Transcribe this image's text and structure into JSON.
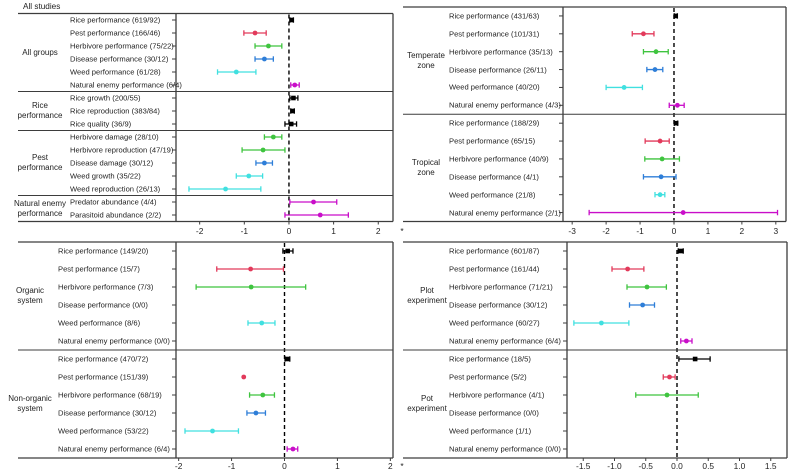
{
  "figure_background": "#ffffff",
  "chart_data": {
    "type": "scatter",
    "subtype": "forest-plot-meta-analysis",
    "legend_position": "none",
    "grid": false,
    "series_colors": {
      "rice": "#000000",
      "pest": "#e23a5b",
      "herbivore": "#3fc43f",
      "disease": "#2e7ed8",
      "weed": "#40e0e0",
      "natural_enemy": "#c90ec9"
    },
    "panels": [
      {
        "id": "all-studies",
        "header": "All studies",
        "xlim": [
          -2.53,
          2.33
        ],
        "x_ticks": [
          -2,
          -1,
          0,
          1,
          2
        ],
        "x_tick_labels": [
          "-2",
          "-1",
          "0",
          "1",
          "2"
        ],
        "x_suffix": "*",
        "groups": [
          {
            "label": "All groups",
            "rows": [
              {
                "label": "Rice performance (619/92)",
                "series": "rice",
                "marker": "square",
                "value": 0.06,
                "lo": 0.02,
                "hi": 0.1
              },
              {
                "label": "Pest performance (166/46)",
                "series": "pest",
                "marker": "circle",
                "value": -0.76,
                "lo": -1.01,
                "hi": -0.51
              },
              {
                "label": "Herbivore performance (75/22)",
                "series": "herbivore",
                "marker": "circle",
                "value": -0.46,
                "lo": -0.76,
                "hi": -0.16
              },
              {
                "label": "Disease performance (30/12)",
                "series": "disease",
                "marker": "circle",
                "value": -0.55,
                "lo": -0.76,
                "hi": -0.35
              },
              {
                "label": "Weed performance (61/28)",
                "series": "weed",
                "marker": "circle",
                "value": -1.18,
                "lo": -1.6,
                "hi": -0.74
              },
              {
                "label": "Natural enemy performance (6/4)",
                "series": "natural_enemy",
                "marker": "circle",
                "value": 0.13,
                "lo": 0.04,
                "hi": 0.23
              }
            ]
          },
          {
            "label": "Rice\nperformance",
            "rows": [
              {
                "label": "Rice growth (200/55)",
                "series": "rice",
                "marker": "square",
                "value": 0.1,
                "lo": 0.02,
                "hi": 0.2
              },
              {
                "label": "Rice reproduction (383/84)",
                "series": "rice",
                "marker": "square",
                "value": 0.08,
                "lo": 0.04,
                "hi": 0.12
              },
              {
                "label": "Rice quality (36/9)",
                "series": "rice",
                "marker": "square",
                "value": 0.05,
                "lo": -0.09,
                "hi": 0.17
              }
            ]
          },
          {
            "label": "Pest\nperformance",
            "rows": [
              {
                "label": "Herbivore damage (28/10)",
                "series": "herbivore",
                "marker": "circle",
                "value": -0.35,
                "lo": -0.55,
                "hi": -0.16
              },
              {
                "label": "Herbivore reproduction (47/19)",
                "series": "herbivore",
                "marker": "circle",
                "value": -0.58,
                "lo": -1.05,
                "hi": -0.09
              },
              {
                "label": "Disease damage (30/12)",
                "series": "disease",
                "marker": "circle",
                "value": -0.55,
                "lo": -0.74,
                "hi": -0.37
              },
              {
                "label": "Weed growth (35/22)",
                "series": "weed",
                "marker": "circle",
                "value": -0.9,
                "lo": -1.18,
                "hi": -0.59
              },
              {
                "label": "Weed reproduction (26/13)",
                "series": "weed",
                "marker": "circle",
                "value": -1.42,
                "lo": -2.24,
                "hi": -0.63
              }
            ]
          },
          {
            "label": "Natural enemy\nperformance",
            "rows": [
              {
                "label": "Predator abundance (4/4)",
                "series": "natural_enemy",
                "marker": "circle",
                "value": 0.55,
                "lo": 0.02,
                "hi": 1.07
              },
              {
                "label": "Parasitoid abundance (2/2)",
                "series": "natural_enemy",
                "marker": "circle",
                "value": 0.7,
                "lo": -0.09,
                "hi": 1.33
              }
            ]
          }
        ]
      },
      {
        "id": "climate-zone",
        "header": "",
        "xlim": [
          -3.27,
          3.3
        ],
        "x_ticks": [
          -3,
          -2,
          -1,
          0,
          1,
          2,
          3
        ],
        "x_tick_labels": [
          "-3",
          "-2",
          "-1",
          "0",
          "1",
          "2",
          "3"
        ],
        "x_suffix": "",
        "groups": [
          {
            "label": "Temperate\nzone",
            "rows": [
              {
                "label": "Rice performance (431/63)",
                "series": "rice",
                "marker": "square",
                "value": 0.05,
                "lo": 0.01,
                "hi": 0.1
              },
              {
                "label": "Pest performance (101/31)",
                "series": "pest",
                "marker": "circle",
                "value": -0.9,
                "lo": -1.23,
                "hi": -0.59
              },
              {
                "label": "Herbivore performance (35/13)",
                "series": "herbivore",
                "marker": "circle",
                "value": -0.53,
                "lo": -0.9,
                "hi": -0.17
              },
              {
                "label": "Disease performance (26/11)",
                "series": "disease",
                "marker": "circle",
                "value": -0.56,
                "lo": -0.8,
                "hi": -0.33
              },
              {
                "label": "Weed performance (40/20)",
                "series": "weed",
                "marker": "circle",
                "value": -1.47,
                "lo": -2.0,
                "hi": -0.93
              },
              {
                "label": "Natural enemy performance (4/3)",
                "series": "natural_enemy",
                "marker": "circle",
                "value": 0.1,
                "lo": -0.14,
                "hi": 0.3
              }
            ]
          },
          {
            "label": "Tropical\nzone",
            "rows": [
              {
                "label": "Rice performance (188/29)",
                "series": "rice",
                "marker": "square",
                "value": 0.06,
                "lo": 0.01,
                "hi": 0.11
              },
              {
                "label": "Pest performance (65/15)",
                "series": "pest",
                "marker": "circle",
                "value": -0.41,
                "lo": -0.85,
                "hi": -0.14
              },
              {
                "label": "Herbivore performance (40/9)",
                "series": "herbivore",
                "marker": "circle",
                "value": -0.35,
                "lo": -0.86,
                "hi": 0.16
              },
              {
                "label": "Disease performance (4/1)",
                "series": "disease",
                "marker": "circle",
                "value": -0.38,
                "lo": -0.9,
                "hi": 0.06
              },
              {
                "label": "Weed performance (21/8)",
                "series": "weed",
                "marker": "circle",
                "value": -0.41,
                "lo": -0.56,
                "hi": -0.27
              },
              {
                "label": "Natural enemy performance (2/1)",
                "series": "natural_enemy",
                "marker": "circle",
                "value": 0.27,
                "lo": -2.5,
                "hi": 3.05
              }
            ]
          }
        ]
      },
      {
        "id": "farming-system",
        "header": "",
        "xlim": [
          -2.05,
          2.05
        ],
        "x_ticks": [
          -2,
          -1,
          0,
          1,
          2
        ],
        "x_tick_labels": [
          "-2",
          "-1",
          "0",
          "1",
          "2"
        ],
        "x_suffix": "*",
        "groups": [
          {
            "label": "Organic\nsystem",
            "rows": [
              {
                "label": "Rice performance (149/20)",
                "series": "rice",
                "marker": "square",
                "value": 0.06,
                "lo": -0.03,
                "hi": 0.16
              },
              {
                "label": "Pest performance (15/7)",
                "series": "pest",
                "marker": "circle",
                "value": -0.64,
                "lo": -1.28,
                "hi": -0.02
              },
              {
                "label": "Herbivore performance (7/3)",
                "series": "herbivore",
                "marker": "circle",
                "value": -0.63,
                "lo": -1.67,
                "hi": 0.4
              },
              {
                "label": "Disease performance (0/0)",
                "series": "disease",
                "marker": "circle",
                "value": null,
                "lo": null,
                "hi": null
              },
              {
                "label": "Weed performance (8/6)",
                "series": "weed",
                "marker": "circle",
                "value": -0.43,
                "lo": -0.69,
                "hi": -0.18
              },
              {
                "label": "Natural enemy performance (0/0)",
                "series": "natural_enemy",
                "marker": "circle",
                "value": null,
                "lo": null,
                "hi": null
              }
            ]
          },
          {
            "label": "Non-organic\nsystem",
            "rows": [
              {
                "label": "Rice performance (470/72)",
                "series": "rice",
                "marker": "square",
                "value": 0.05,
                "lo": 0.01,
                "hi": 0.1
              },
              {
                "label": "Pest performance (151/39)",
                "series": "pest",
                "marker": "circle",
                "value": -0.77,
                "lo": null,
                "hi": null
              },
              {
                "label": "Herbivore performance (68/19)",
                "series": "herbivore",
                "marker": "circle",
                "value": -0.41,
                "lo": -0.66,
                "hi": -0.19
              },
              {
                "label": "Disease performance (30/12)",
                "series": "disease",
                "marker": "circle",
                "value": -0.54,
                "lo": -0.71,
                "hi": -0.36
              },
              {
                "label": "Weed performance (53/22)",
                "series": "weed",
                "marker": "circle",
                "value": -1.36,
                "lo": -1.88,
                "hi": -0.87
              },
              {
                "label": "Natural enemy performance (6/4)",
                "series": "natural_enemy",
                "marker": "circle",
                "value": 0.16,
                "lo": 0.05,
                "hi": 0.25
              }
            ]
          }
        ]
      },
      {
        "id": "experiment-type",
        "header": "",
        "xlim": [
          -1.76,
          1.76
        ],
        "x_ticks": [
          -1.5,
          -1.0,
          -0.5,
          0.0,
          0.5,
          1.0,
          1.5
        ],
        "x_tick_labels": [
          "-1.5",
          "-1.0",
          "-0.5",
          "0.0",
          "0.5",
          "1.0",
          "1.5"
        ],
        "x_suffix": "",
        "groups": [
          {
            "label": "Plot\nexperiment",
            "rows": [
              {
                "label": "Rice performance (601/87)",
                "series": "rice",
                "marker": "square",
                "value": 0.06,
                "lo": 0.02,
                "hi": 0.1
              },
              {
                "label": "Pest performance (161/44)",
                "series": "pest",
                "marker": "circle",
                "value": -0.79,
                "lo": -1.04,
                "hi": -0.53
              },
              {
                "label": "Herbivore performance (71/21)",
                "series": "herbivore",
                "marker": "circle",
                "value": -0.48,
                "lo": -0.8,
                "hi": -0.17
              },
              {
                "label": "Disease performance (30/12)",
                "series": "disease",
                "marker": "circle",
                "value": -0.55,
                "lo": -0.76,
                "hi": -0.36
              },
              {
                "label": "Weed performance (60/27)",
                "series": "weed",
                "marker": "circle",
                "value": -1.21,
                "lo": -1.65,
                "hi": -0.77
              },
              {
                "label": "Natural enemy performance (6/4)",
                "series": "natural_enemy",
                "marker": "circle",
                "value": 0.15,
                "lo": 0.06,
                "hi": 0.24
              }
            ]
          },
          {
            "label": "Pot\nexperiment",
            "rows": [
              {
                "label": "Rice performance (18/5)",
                "series": "rice",
                "marker": "square",
                "value": 0.29,
                "lo": 0.03,
                "hi": 0.53
              },
              {
                "label": "Pest performance (5/2)",
                "series": "pest",
                "marker": "circle",
                "value": -0.12,
                "lo": -0.22,
                "hi": -0.03
              },
              {
                "label": "Herbivore performance (4/1)",
                "series": "herbivore",
                "marker": "circle",
                "value": -0.16,
                "lo": -0.66,
                "hi": 0.34
              },
              {
                "label": "Disease performance (0/0)",
                "series": "disease",
                "marker": "circle",
                "value": null,
                "lo": null,
                "hi": null
              },
              {
                "label": "Weed performance (1/1)",
                "series": "weed",
                "marker": "circle",
                "value": null,
                "lo": null,
                "hi": null
              },
              {
                "label": "Natural enemy performance (0/0)",
                "series": "natural_enemy",
                "marker": "circle",
                "value": null,
                "lo": null,
                "hi": null
              }
            ]
          }
        ]
      }
    ]
  }
}
